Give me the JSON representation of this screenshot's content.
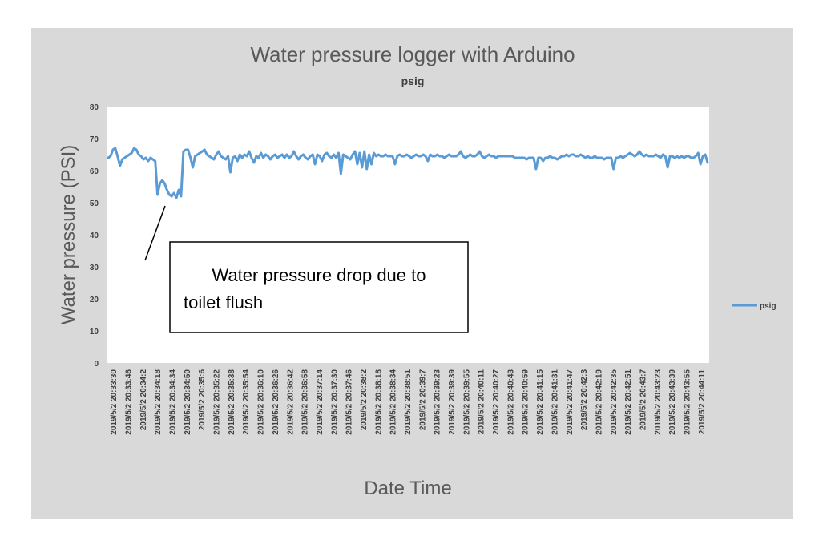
{
  "chart_data": {
    "type": "line",
    "title": "Water pressure logger with Arduino",
    "subtitle": "psig",
    "xlabel": "Date Time",
    "ylabel": "Water pressure (PSI)",
    "ylim": [
      0,
      80
    ],
    "yticks": [
      0,
      10,
      20,
      30,
      40,
      50,
      60,
      70,
      80
    ],
    "grid": false,
    "legend_position": "right",
    "series_color": "#5b9bd5",
    "x_tick_labels": [
      "2019/5/2 20:33:30",
      "2019/5/2 20:33:46",
      "2019/5/2 20:34:2",
      "2019/5/2 20:34:18",
      "2019/5/2 20:34:34",
      "2019/5/2 20:34:50",
      "2019/5/2 20:35:6",
      "2019/5/2 20:35:22",
      "2019/5/2 20:35:38",
      "2019/5/2 20:35:54",
      "2019/5/2 20:36:10",
      "2019/5/2 20:36:26",
      "2019/5/2 20:36:42",
      "2019/5/2 20:36:58",
      "2019/5/2 20:37:14",
      "2019/5/2 20:37:30",
      "2019/5/2 20:37:46",
      "2019/5/2 20:38:2",
      "2019/5/2 20:38:18",
      "2019/5/2 20:38:34",
      "2019/5/2 20:38:51",
      "2019/5/2 20:39:7",
      "2019/5/2 20:39:23",
      "2019/5/2 20:39:39",
      "2019/5/2 20:39:55",
      "2019/5/2 20:40:11",
      "2019/5/2 20:40:27",
      "2019/5/2 20:40:43",
      "2019/5/2 20:40:59",
      "2019/5/2 20:41:15",
      "2019/5/2 20:41:31",
      "2019/5/2 20:41:47",
      "2019/5/2 20:42:3",
      "2019/5/2 20:42:19",
      "2019/5/2 20:42:35",
      "2019/5/2 20:42:51",
      "2019/5/2 20:43:7",
      "2019/5/2 20:43:23",
      "2019/5/2 20:43:39",
      "2019/5/2 20:43:55",
      "2019/5/2 20:44:11"
    ],
    "series": [
      {
        "name": "psig",
        "values": [
          64,
          64.5,
          66.5,
          67,
          64.5,
          61.5,
          63.5,
          64,
          64.5,
          65,
          65.5,
          67,
          66.5,
          65,
          64.5,
          63.5,
          64,
          63,
          64,
          63.5,
          63,
          52.5,
          56,
          57,
          56,
          54,
          52.5,
          52,
          53,
          51.5,
          54,
          52,
          66,
          66.5,
          66.5,
          64,
          61,
          64.5,
          65,
          65.5,
          66,
          66.5,
          65,
          64.5,
          64,
          63.5,
          65,
          66,
          64.5,
          64,
          63.5,
          64.5,
          59.5,
          64,
          64.5,
          63,
          65,
          64,
          65,
          64.5,
          66,
          64,
          62.5,
          64.5,
          64,
          65.5,
          64,
          65,
          64.5,
          63.5,
          64.5,
          65,
          64,
          64.5,
          65,
          64,
          65,
          64,
          64.5,
          66,
          64.5,
          63.5,
          64.5,
          65,
          64,
          63.5,
          64.5,
          65,
          62,
          65,
          64.5,
          63,
          65,
          65.5,
          64.5,
          64,
          65,
          64,
          65.5,
          59,
          65,
          64.5,
          64,
          63.5,
          65,
          66,
          62,
          65.5,
          61,
          66,
          60.5,
          65,
          62,
          65.5,
          64.5,
          65,
          64.5,
          64.5,
          65,
          64.5,
          64.5,
          64.5,
          62,
          64.5,
          65,
          64.5,
          64.5,
          65,
          64.5,
          64,
          64.5,
          65,
          64.5,
          64.5,
          65,
          64.5,
          63,
          65,
          64.5,
          64.5,
          65,
          64.5,
          64.5,
          64,
          64.5,
          65,
          64.5,
          64.5,
          64.5,
          65,
          66,
          64.5,
          64,
          64.5,
          65,
          64.5,
          64.5,
          65,
          66,
          64.5,
          64,
          64.5,
          65,
          64.5,
          64.5,
          64,
          64.5,
          64.5,
          64.5,
          64.5,
          64.5,
          64.5,
          64.5,
          64,
          64,
          64,
          64,
          64,
          63.5,
          64,
          64,
          64,
          60.5,
          64,
          64,
          63,
          64,
          64,
          64.5,
          64,
          64,
          63.5,
          64,
          64.5,
          64.5,
          65,
          64.5,
          65,
          65,
          64.5,
          64.5,
          65,
          64.5,
          64,
          64.5,
          64,
          64,
          64.5,
          64,
          64,
          64,
          63.5,
          64,
          64,
          64,
          60.5,
          64,
          64,
          64.5,
          64,
          64.5,
          65,
          65.5,
          65,
          64.5,
          65,
          66,
          65,
          64.5,
          65,
          64.5,
          64.5,
          64.5,
          65,
          64.5,
          64,
          65,
          64.5,
          61,
          64.5,
          64.5,
          64,
          64.5,
          64,
          64.5,
          64,
          64.5,
          64.5,
          64,
          64,
          64.5,
          65.5,
          62,
          64.5,
          65,
          62.5
        ]
      }
    ],
    "annotation": {
      "text_line1": "Water pressure drop due to",
      "text_line2": "toilet flush"
    }
  }
}
